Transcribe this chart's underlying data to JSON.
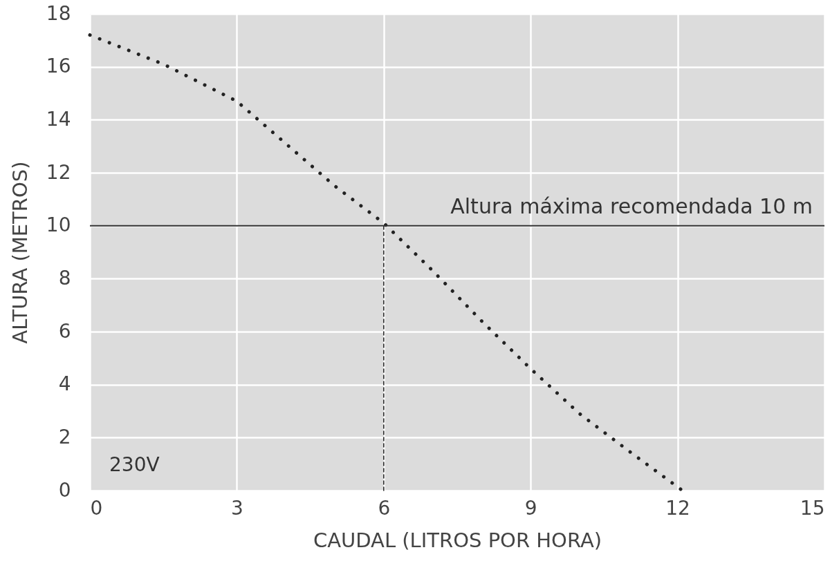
{
  "chart_data": {
    "type": "line",
    "xlabel": "CAUDAL (LITROS POR HORA)",
    "ylabel": "ALTURA (METROS)",
    "xlim": [
      0,
      15
    ],
    "xticks": [
      0,
      3,
      6,
      9,
      12,
      15
    ],
    "ylim": [
      0,
      18
    ],
    "yticks": [
      0,
      2,
      4,
      6,
      8,
      10,
      12,
      14,
      16,
      18
    ],
    "grid": true,
    "marker": "none",
    "series": [
      {
        "color": "#222222",
        "line_style": "dotted",
        "x": [
          0,
          1.5,
          3,
          4,
          5,
          6,
          7,
          8,
          9,
          10,
          11,
          12.1
        ],
        "values": [
          17.2,
          16.1,
          14.7,
          13.1,
          11.5,
          10.1,
          8.3,
          6.4,
          4.6,
          2.9,
          1.5,
          0
        ]
      },
      {
        "color": "#222222",
        "line_style": "dashed",
        "x": [
          6,
          6
        ],
        "values": [
          0,
          10
        ]
      }
    ],
    "ref_lines": [
      {
        "axis": "y",
        "value": 10,
        "label": "Altura máxima recomendada 10 m",
        "color": "#333333"
      }
    ],
    "annotations": [
      "230V"
    ]
  }
}
